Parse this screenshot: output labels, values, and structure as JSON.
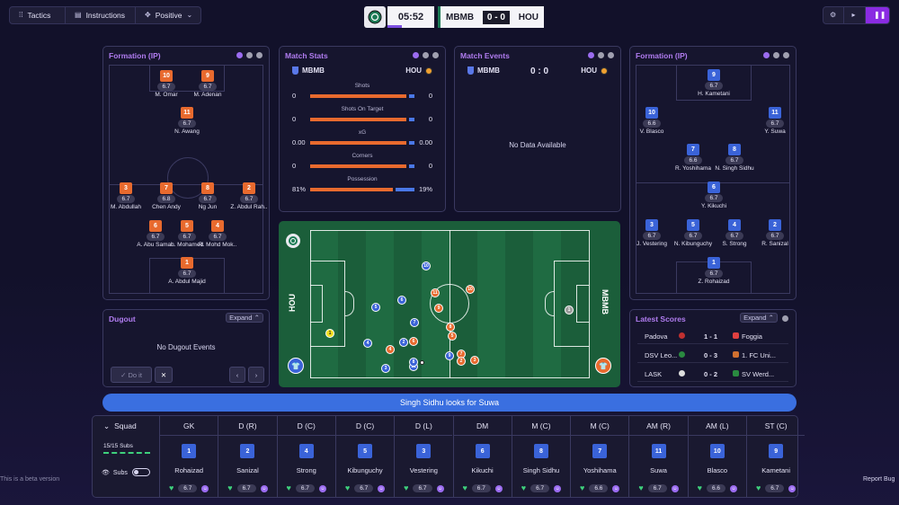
{
  "topbar": {
    "tactics_label": "Tactics",
    "instructions_label": "Instructions",
    "mentality_label": "Positive"
  },
  "scoreboard": {
    "clock": "05:52",
    "home": "MBMB",
    "score": "0 - 0",
    "away": "HOU",
    "time_progress": 0.3
  },
  "formation_left": {
    "title": "Formation (IP)",
    "players": [
      {
        "num": "10",
        "rating": "6.7",
        "name": "M. Omar"
      },
      {
        "num": "9",
        "rating": "6.7",
        "name": "M. Adenan"
      },
      {
        "num": "11",
        "rating": "6.7",
        "name": "N. Awang"
      },
      {
        "num": "3",
        "rating": "6.7",
        "name": "M. Abdullah"
      },
      {
        "num": "7",
        "rating": "6.8",
        "name": "Chen Andy"
      },
      {
        "num": "8",
        "rating": "6.7",
        "name": "Ng Jun"
      },
      {
        "num": "2",
        "rating": "6.7",
        "name": "Z. Abdul Rah.."
      },
      {
        "num": "6",
        "rating": "6.7",
        "name": "A. Abu Samah"
      },
      {
        "num": "5",
        "rating": "6.7",
        "name": "L. Mohamed"
      },
      {
        "num": "4",
        "rating": "6.7",
        "name": "R. Mohd Mok.."
      },
      {
        "num": "1",
        "rating": "6.7",
        "name": "A. Abdul Majid"
      }
    ]
  },
  "match_stats": {
    "title": "Match Stats",
    "home": "MBMB",
    "away": "HOU",
    "rows": [
      {
        "label": "Shots",
        "home": "0",
        "away": "0",
        "home_share": 0.95
      },
      {
        "label": "Shots On Target",
        "home": "0",
        "away": "0",
        "home_share": 0.95
      },
      {
        "label": "xG",
        "home": "0.00",
        "away": "0.00",
        "home_share": 0.95
      },
      {
        "label": "Corners",
        "home": "0",
        "away": "0",
        "home_share": 0.95
      },
      {
        "label": "Possession",
        "home": "81%",
        "away": "19%",
        "home_share": 0.81
      }
    ]
  },
  "match_events": {
    "title": "Match Events",
    "home": "MBMB",
    "score": "0 : 0",
    "away": "HOU",
    "empty_text": "No Data Available"
  },
  "formation_right": {
    "title": "Formation (IP)",
    "players": [
      {
        "num": "9",
        "rating": "6.7",
        "name": "H. Kametani"
      },
      {
        "num": "10",
        "rating": "6.6",
        "name": "V. Blasco"
      },
      {
        "num": "11",
        "rating": "6.7",
        "name": "Y. Suwa"
      },
      {
        "num": "7",
        "rating": "6.6",
        "name": "R. Yoshihama"
      },
      {
        "num": "8",
        "rating": "6.7",
        "name": "N. Singh Sidhu"
      },
      {
        "num": "6",
        "rating": "6.7",
        "name": "Y. Kikuchi"
      },
      {
        "num": "3",
        "rating": "6.7",
        "name": "J. Vestering"
      },
      {
        "num": "5",
        "rating": "6.7",
        "name": "N. Kibunguchy"
      },
      {
        "num": "4",
        "rating": "6.7",
        "name": "S. Strong"
      },
      {
        "num": "2",
        "rating": "6.7",
        "name": "R. Sanizal"
      },
      {
        "num": "1",
        "rating": "6.7",
        "name": "Z. Rohaizad"
      }
    ]
  },
  "dugout": {
    "title": "Dugout",
    "expand_label": "Expand",
    "empty_text": "No Dugout Events",
    "do_it_label": "Do it"
  },
  "latest_scores": {
    "title": "Latest Scores",
    "expand_label": "Expand",
    "rows": [
      {
        "home": "Padova",
        "score": "1 - 1",
        "away": "Foggia"
      },
      {
        "home": "DSV Leo...",
        "score": "0 - 3",
        "away": "1. FC Uni..."
      },
      {
        "home": "LASK",
        "score": "0 - 2",
        "away": "SV Werd..."
      }
    ]
  },
  "pitch": {
    "left_team": "HOU",
    "right_team": "MBMB",
    "markers": [
      {
        "team": "b",
        "num": "10"
      },
      {
        "team": "b",
        "num": "11"
      },
      {
        "team": "b",
        "num": "9"
      },
      {
        "team": "b",
        "num": "8"
      },
      {
        "team": "b",
        "num": "7"
      },
      {
        "team": "b",
        "num": "6"
      },
      {
        "team": "b",
        "num": "5"
      },
      {
        "team": "b",
        "num": "4"
      },
      {
        "team": "b",
        "num": "3"
      },
      {
        "team": "b",
        "num": "2"
      },
      {
        "team": "o",
        "num": "11"
      },
      {
        "team": "o",
        "num": "10"
      },
      {
        "team": "o",
        "num": "9"
      },
      {
        "team": "o",
        "num": "8"
      },
      {
        "team": "o",
        "num": "7"
      },
      {
        "team": "o",
        "num": "6"
      },
      {
        "team": "o",
        "num": "5"
      },
      {
        "team": "o",
        "num": "4"
      },
      {
        "team": "o",
        "num": "3"
      },
      {
        "team": "o",
        "num": "2"
      }
    ]
  },
  "commentary": "Singh Sidhu looks for Suwa",
  "squad": {
    "title": "Squad",
    "subs_count": "15/15 Subs",
    "subs_toggle_label": "Subs",
    "columns": [
      {
        "pos": "GK",
        "num": "1",
        "name": "Rohaizad",
        "rating": "6.7"
      },
      {
        "pos": "D (R)",
        "num": "2",
        "name": "Sanizal",
        "rating": "6.7"
      },
      {
        "pos": "D (C)",
        "num": "4",
        "name": "Strong",
        "rating": "6.7"
      },
      {
        "pos": "D (C)",
        "num": "5",
        "name": "Kibunguchy",
        "rating": "6.7"
      },
      {
        "pos": "D (L)",
        "num": "3",
        "name": "Vestering",
        "rating": "6.7"
      },
      {
        "pos": "DM",
        "num": "6",
        "name": "Kikuchi",
        "rating": "6.7"
      },
      {
        "pos": "M (C)",
        "num": "8",
        "name": "Singh Sidhu",
        "rating": "6.7"
      },
      {
        "pos": "M (C)",
        "num": "7",
        "name": "Yoshihama",
        "rating": "6.6"
      },
      {
        "pos": "AM (R)",
        "num": "11",
        "name": "Suwa",
        "rating": "6.7"
      },
      {
        "pos": "AM (L)",
        "num": "10",
        "name": "Blasco",
        "rating": "6.6"
      },
      {
        "pos": "ST (C)",
        "num": "9",
        "name": "Kametani",
        "rating": "6.7"
      }
    ]
  },
  "footer": {
    "beta_text": "This is a beta version",
    "report_bug_label": "Report Bug"
  },
  "icons": {
    "tactics": "tactics-icon",
    "instructions": "clipboard-icon",
    "settings": "gear-icon",
    "pause": "pause-icon"
  },
  "colors": {
    "home_team": "#e86a2e",
    "away_team": "#3a63d8",
    "accent": "#9b6cf0",
    "pitch": "#1b5e3a"
  }
}
